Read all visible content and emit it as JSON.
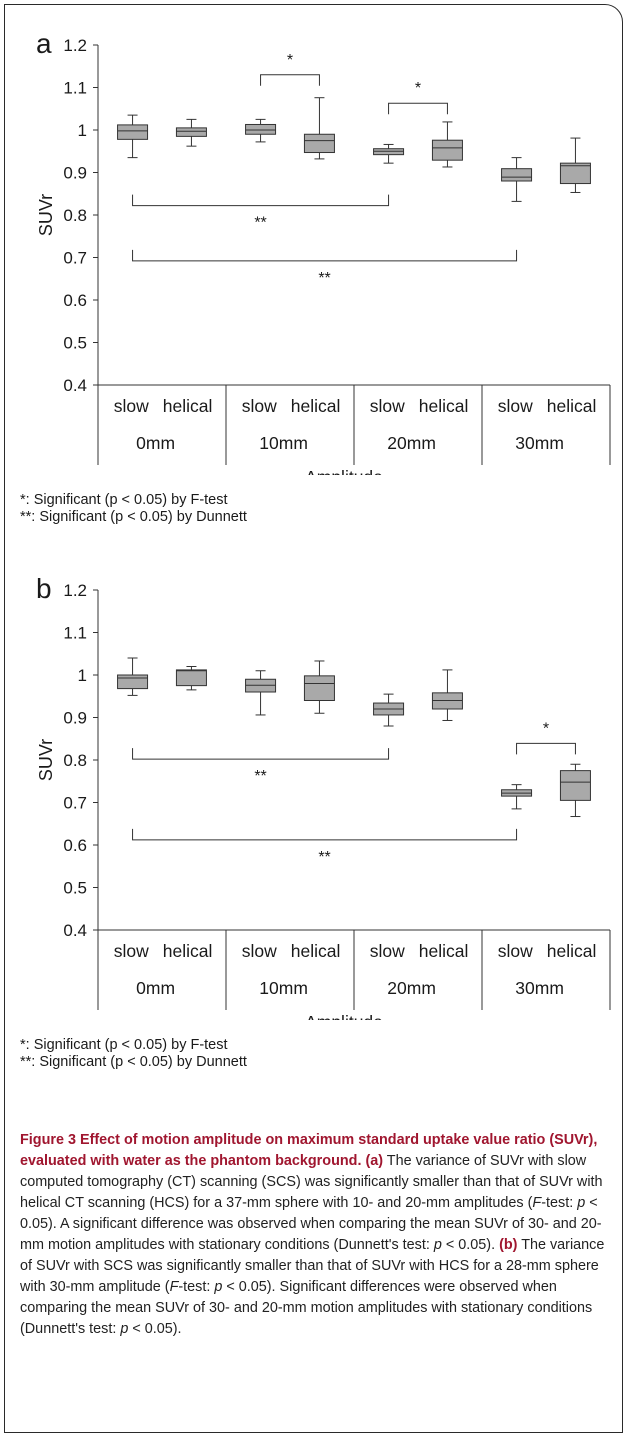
{
  "chart_data": [
    {
      "type": "box",
      "panel_label": "a",
      "ylabel": "SUVr",
      "xlabel": "Amplitude",
      "ylim": [
        0.4,
        1.2
      ],
      "yticks": [
        "0.4",
        "0.5",
        "0.6",
        "0.7",
        "0.8",
        "0.9",
        "1",
        "1.1",
        "1.2"
      ],
      "groups": [
        "0mm",
        "10mm",
        "20mm",
        "30mm"
      ],
      "methods": [
        "slow",
        "helical"
      ],
      "boxes": [
        {
          "group": "0mm",
          "method": "slow",
          "min": 0.935,
          "q1": 0.978,
          "median": 0.998,
          "q3": 1.012,
          "max": 1.035
        },
        {
          "group": "0mm",
          "method": "helical",
          "min": 0.962,
          "q1": 0.985,
          "median": 0.997,
          "q3": 1.005,
          "max": 1.025
        },
        {
          "group": "10mm",
          "method": "slow",
          "min": 0.972,
          "q1": 0.99,
          "median": 1.0,
          "q3": 1.013,
          "max": 1.025
        },
        {
          "group": "10mm",
          "method": "helical",
          "min": 0.932,
          "q1": 0.947,
          "median": 0.975,
          "q3": 0.99,
          "max": 1.076
        },
        {
          "group": "20mm",
          "method": "slow",
          "min": 0.922,
          "q1": 0.942,
          "median": 0.95,
          "q3": 0.956,
          "max": 0.966
        },
        {
          "group": "20mm",
          "method": "helical",
          "min": 0.913,
          "q1": 0.929,
          "median": 0.958,
          "q3": 0.976,
          "max": 1.019
        },
        {
          "group": "30mm",
          "method": "slow",
          "min": 0.832,
          "q1": 0.88,
          "median": 0.889,
          "q3": 0.909,
          "max": 0.935
        },
        {
          "group": "30mm",
          "method": "helical",
          "min": 0.853,
          "q1": 0.874,
          "median": 0.916,
          "q3": 0.922,
          "max": 0.981
        }
      ],
      "annotations": [
        {
          "type": "F-test",
          "label": "*",
          "from": "10mm slow",
          "to": "10mm helical",
          "y": 1.13
        },
        {
          "type": "F-test",
          "label": "*",
          "from": "20mm slow",
          "to": "20mm helical",
          "y": 1.063
        },
        {
          "type": "Dunnett",
          "label": "**",
          "from": "0mm slow",
          "to": "20mm slow",
          "y": 0.822
        },
        {
          "type": "Dunnett",
          "label": "**",
          "from": "0mm slow",
          "to": "30mm slow",
          "y": 0.692
        }
      ]
    },
    {
      "type": "box",
      "panel_label": "b",
      "ylabel": "SUVr",
      "xlabel": "Amplitude",
      "ylim": [
        0.4,
        1.2
      ],
      "yticks": [
        "0.4",
        "0.5",
        "0.6",
        "0.7",
        "0.8",
        "0.9",
        "1",
        "1.1",
        "1.2"
      ],
      "groups": [
        "0mm",
        "10mm",
        "20mm",
        "30mm"
      ],
      "methods": [
        "slow",
        "helical"
      ],
      "boxes": [
        {
          "group": "0mm",
          "method": "slow",
          "min": 0.952,
          "q1": 0.968,
          "median": 0.993,
          "q3": 1.0,
          "max": 1.04
        },
        {
          "group": "0mm",
          "method": "helical",
          "min": 0.965,
          "q1": 0.975,
          "median": 1.01,
          "q3": 1.012,
          "max": 1.02
        },
        {
          "group": "10mm",
          "method": "slow",
          "min": 0.906,
          "q1": 0.96,
          "median": 0.976,
          "q3": 0.99,
          "max": 1.01
        },
        {
          "group": "10mm",
          "method": "helical",
          "min": 0.91,
          "q1": 0.94,
          "median": 0.98,
          "q3": 0.998,
          "max": 1.033
        },
        {
          "group": "20mm",
          "method": "slow",
          "min": 0.88,
          "q1": 0.906,
          "median": 0.92,
          "q3": 0.934,
          "max": 0.955
        },
        {
          "group": "20mm",
          "method": "helical",
          "min": 0.893,
          "q1": 0.92,
          "median": 0.94,
          "q3": 0.958,
          "max": 1.012
        },
        {
          "group": "30mm",
          "method": "slow",
          "min": 0.685,
          "q1": 0.715,
          "median": 0.722,
          "q3": 0.73,
          "max": 0.742
        },
        {
          "group": "30mm",
          "method": "helical",
          "min": 0.667,
          "q1": 0.705,
          "median": 0.748,
          "q3": 0.775,
          "max": 0.79
        }
      ],
      "annotations": [
        {
          "type": "F-test",
          "label": "*",
          "from": "30mm slow",
          "to": "30mm helical",
          "y": 0.839
        },
        {
          "type": "Dunnett",
          "label": "**",
          "from": "0mm slow",
          "to": "20mm slow",
          "y": 0.802
        },
        {
          "type": "Dunnett",
          "label": "**",
          "from": "0mm slow",
          "to": "30mm slow",
          "y": 0.612
        }
      ]
    }
  ],
  "notes": {
    "ftest": "*: Significant (p < 0.05) by F-test",
    "dunnett": "**: Significant (p < 0.05) by Dunnett"
  },
  "caption": {
    "title": "Figure 3 Effect of motion amplitude on maximum standard uptake value ratio (SUVr), evaluated with water as the phantom background.",
    "a_marker": "(a)",
    "a_part1": " The variance of SUVr with slow computed tomography (CT) scanning (SCS) was significantly smaller than that of SUVr with helical CT scanning (HCS) for a 37-mm sphere with 10- and 20-mm amplitudes (",
    "a_ftest": "F",
    "a_part2": "-test: ",
    "a_p1": "p",
    "a_part3": " < 0.05). A significant difference was observed when comparing the mean SUVr of 30- and 20-mm motion amplitudes with stationary conditions (Dunnett's test: ",
    "a_p2": "p",
    "a_part4": " < 0.05). ",
    "b_marker": "(b)",
    "b_part1": " The variance of SUVr with SCS was significantly smaller than that of SUVr with HCS for a 28-mm sphere with 30-mm amplitude (",
    "b_ftest": "F",
    "b_part2": "-test: ",
    "b_p1": "p",
    "b_part3": " < 0.05). Significant differences were observed when comparing the mean SUVr of 30- and 20-mm motion amplitudes with stationary conditions (Dunnett's test: ",
    "b_p2": "p",
    "b_part4": " < 0.05)."
  }
}
